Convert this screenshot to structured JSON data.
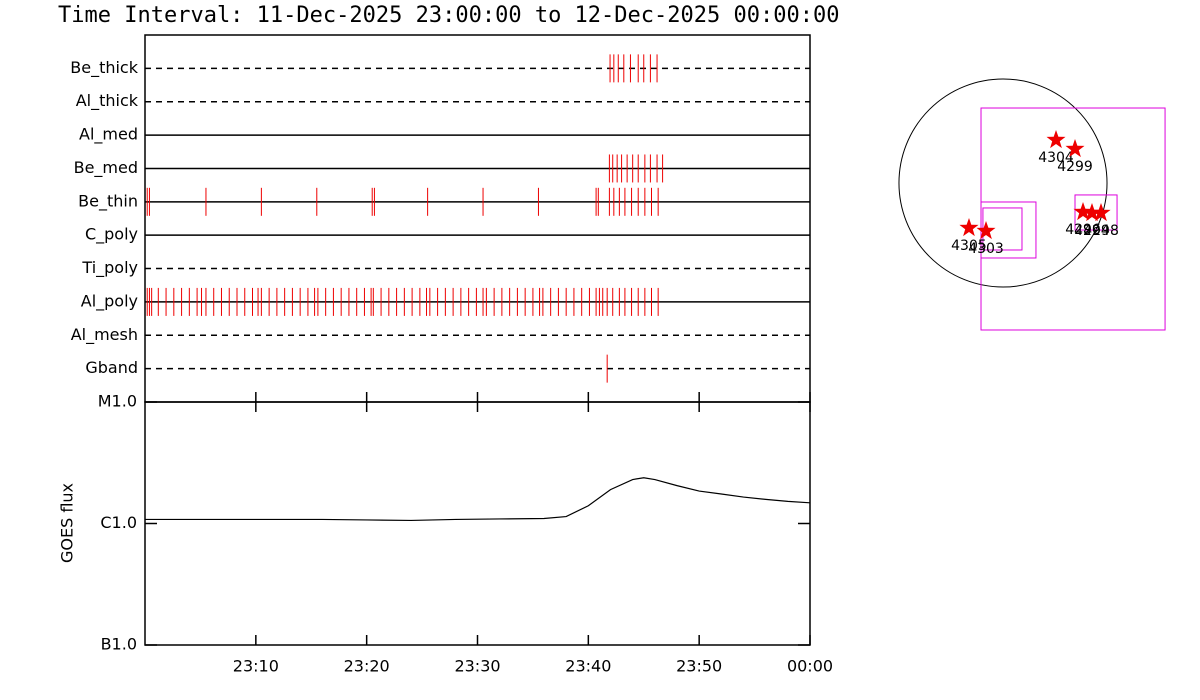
{
  "chart_data": [
    {
      "type": "timeline",
      "title": "Time Interval: 11-Dec-2025 23:00:00 to 12-Dec-2025 00:00:00",
      "xlim": [
        0,
        60
      ],
      "color": "#ee0000",
      "rows": [
        {
          "label": "Be_thick",
          "line_style": "dashed",
          "times": [
            41.96,
            42.3,
            42.7,
            43.2,
            43.8,
            44.5,
            45.0,
            45.6,
            46.2
          ]
        },
        {
          "label": "Al_thick",
          "line_style": "dashed",
          "times": []
        },
        {
          "label": "Al_med",
          "line_style": "solid",
          "times": []
        },
        {
          "label": "Be_med",
          "line_style": "solid",
          "times": [
            41.9,
            42.2,
            42.6,
            43.0,
            43.5,
            44.0,
            44.5,
            45.1,
            45.6,
            46.2,
            46.7
          ]
        },
        {
          "label": "Be_thin",
          "line_style": "solid",
          "times": [
            0.2,
            0.4,
            5.5,
            10.5,
            15.5,
            20.5,
            20.7,
            25.5,
            30.5,
            35.5,
            40.7,
            40.9,
            41.9,
            42.3,
            42.8,
            43.3,
            43.9,
            44.5,
            45.1,
            45.7,
            46.3
          ]
        },
        {
          "label": "C_poly",
          "line_style": "solid",
          "times": []
        },
        {
          "label": "Ti_poly",
          "line_style": "dashed",
          "times": []
        },
        {
          "label": "Al_poly",
          "line_style": "solid",
          "times": [
            0.2,
            0.4,
            0.6,
            1.2,
            1.9,
            2.6,
            3.3,
            4.0,
            4.7,
            5.1,
            5.5,
            6.2,
            6.9,
            7.6,
            8.3,
            9.0,
            9.7,
            10.2,
            10.5,
            11.2,
            11.9,
            12.6,
            13.3,
            14.0,
            14.7,
            15.3,
            15.6,
            16.3,
            17.0,
            17.7,
            18.4,
            19.1,
            19.8,
            20.4,
            20.6,
            21.3,
            22.0,
            22.7,
            23.4,
            24.1,
            24.8,
            25.4,
            25.7,
            26.4,
            27.1,
            27.8,
            28.5,
            29.2,
            29.9,
            30.5,
            30.8,
            31.5,
            32.2,
            32.9,
            33.6,
            34.3,
            35.0,
            35.6,
            35.9,
            36.6,
            37.3,
            38.0,
            38.7,
            39.4,
            40.1,
            40.7,
            41.0,
            41.3,
            41.7,
            42.2,
            42.8,
            43.3,
            43.9,
            44.5,
            45.1,
            45.7,
            46.3
          ]
        },
        {
          "label": "Al_mesh",
          "line_style": "dashed",
          "times": []
        },
        {
          "label": "Gband",
          "line_style": "dashed",
          "times": [
            41.7
          ]
        }
      ]
    },
    {
      "type": "line",
      "y_label": "GOES flux",
      "log_scale": true,
      "xlim": [
        0,
        60
      ],
      "ylim": [
        1e-07,
        1e-05
      ],
      "xticks": [
        {
          "value": 10,
          "label": "23:10"
        },
        {
          "value": 20,
          "label": "23:20"
        },
        {
          "value": 30,
          "label": "23:30"
        },
        {
          "value": 40,
          "label": "23:40"
        },
        {
          "value": 50,
          "label": "23:50"
        },
        {
          "value": 60,
          "label": "00:00"
        }
      ],
      "yticks": [
        {
          "value": 1e-07,
          "label": "B1.0"
        },
        {
          "value": 1e-06,
          "label": "C1.0"
        },
        {
          "value": 1e-05,
          "label": "M1.0"
        }
      ],
      "color": "#000000",
      "x": [
        0,
        4,
        8,
        12,
        16,
        20,
        24,
        28,
        32,
        36,
        38,
        40,
        42,
        44,
        45,
        46,
        48,
        50,
        52,
        54,
        56,
        58,
        60
      ],
      "values": [
        1.08e-06,
        1.08e-06,
        1.08e-06,
        1.08e-06,
        1.08e-06,
        1.07e-06,
        1.06e-06,
        1.08e-06,
        1.09e-06,
        1.1e-06,
        1.14e-06,
        1.4e-06,
        1.9e-06,
        2.3e-06,
        2.38e-06,
        2.3e-06,
        2.05e-06,
        1.85e-06,
        1.75e-06,
        1.65e-06,
        1.58e-06,
        1.52e-06,
        1.48e-06
      ]
    },
    {
      "type": "scatter",
      "xlim": [
        -1000,
        1600
      ],
      "ylim": [
        -1500,
        1200
      ],
      "sun_radius": 975,
      "color": "#ee0000",
      "box_color": "#dd00dd",
      "labels": [
        "4304",
        "4299",
        "4305",
        "4303",
        "4296",
        "4294",
        "4298"
      ],
      "x": [
        497,
        675,
        -319,
        -159,
        750,
        834,
        919
      ],
      "y": [
        403,
        319,
        -422,
        -450,
        -272,
        -281,
        -281
      ],
      "boxes": [
        [
          -206,
          1519,
          -1378,
          703
        ],
        [
          -206,
          309,
          -703,
          -178
        ],
        [
          -188,
          178,
          -628,
          -234
        ],
        [
          675,
          1069,
          -441,
          -112
        ]
      ]
    }
  ]
}
